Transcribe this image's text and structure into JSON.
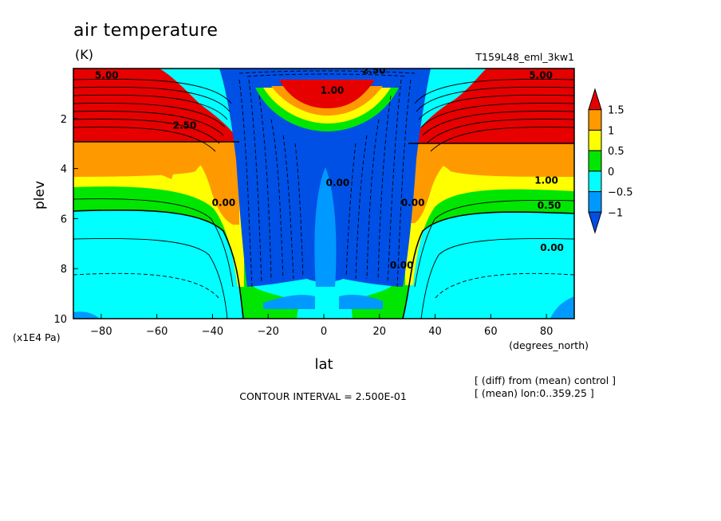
{
  "chart_data": {
    "type": "contour",
    "title": "air temperature",
    "units": "(K)",
    "model": "T159L48_eml_3kw1",
    "xlabel": "lat",
    "xunits": "(degrees_north)",
    "ylabel": "plev",
    "yunits": "(x1E4 Pa)",
    "xlim": [
      -90,
      90
    ],
    "ylim": [
      10,
      0
    ],
    "x_ticks": [
      -80,
      -60,
      -40,
      -20,
      0,
      20,
      40,
      60,
      80
    ],
    "y_ticks": [
      2,
      4,
      6,
      8,
      10
    ],
    "levels": [
      -1,
      -0.5,
      0,
      0.5,
      1,
      1.5
    ],
    "colorbar": {
      "labels": [
        "1.5",
        "1",
        "0.5",
        "0",
        "−0.5",
        "−1"
      ],
      "colors": [
        "#e60000",
        "#ff9900",
        "#ffff00",
        "#00e600",
        "#00ffff",
        "#0099ff",
        "#0050e6"
      ]
    },
    "contour_labels": [
      {
        "text": "1.00",
        "lat": 80,
        "plev": 4.6
      },
      {
        "text": "0.50",
        "lat": 81,
        "plev": 5.6
      },
      {
        "text": "0.00",
        "lat": 82,
        "plev": 7.3
      },
      {
        "text": "0.00",
        "lat": -36,
        "plev": 5.5
      },
      {
        "text": "0.00",
        "lat": 32,
        "plev": 5.5
      },
      {
        "text": "0.00",
        "lat": 28,
        "plev": 8.0
      },
      {
        "text": "0.00",
        "lat": 5,
        "plev": 4.7
      },
      {
        "text": "2.50",
        "lat": -50,
        "plev": 2.4
      },
      {
        "text": "5.00",
        "lat": 78,
        "plev": 0.4
      },
      {
        "text": "5.00",
        "lat": -78,
        "plev": 0.4
      },
      {
        "text": "1.00",
        "lat": 3,
        "plev": 1.0
      },
      {
        "text": "2.50",
        "lat": 18,
        "plev": 0.2
      }
    ],
    "contour_interval": "CONTOUR INTERVAL = 2.500E-01",
    "notes": [
      "[ (diff) from (mean) control ]",
      "[ (mean) lon:0..359.25 ]"
    ]
  }
}
